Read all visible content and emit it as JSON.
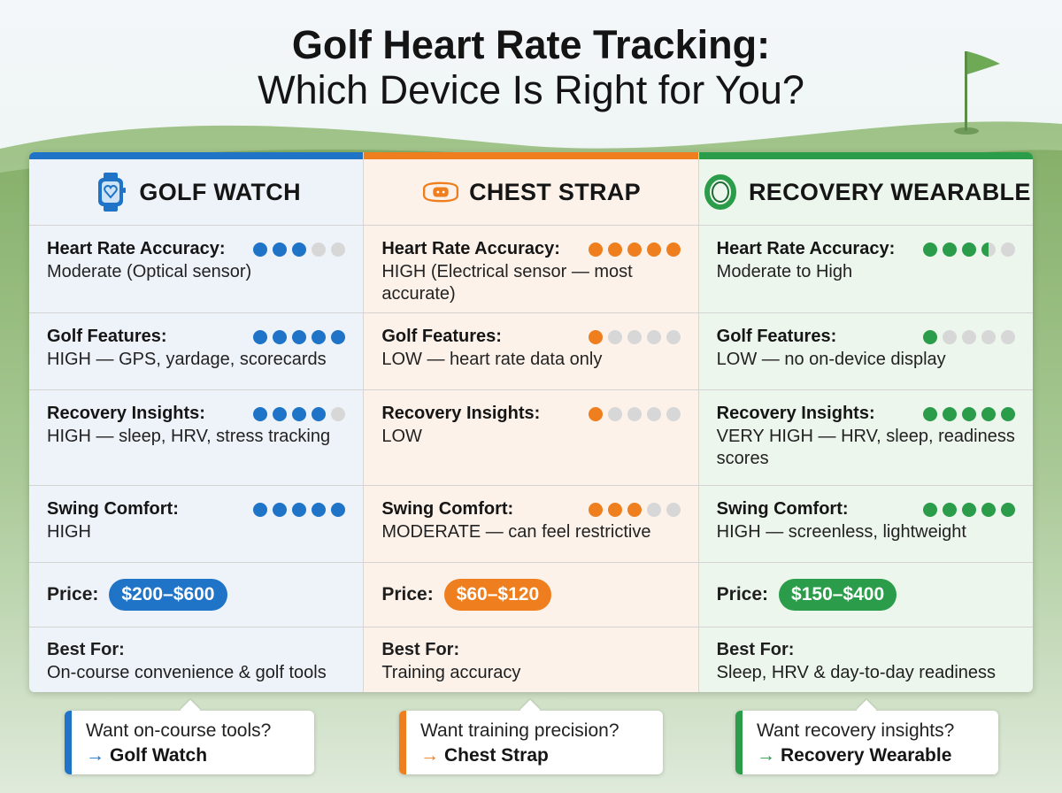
{
  "title": {
    "line1": "Golf Heart Rate Tracking:",
    "line2": "Which Device Is Right for You?"
  },
  "colors": {
    "blue": "#1f74c8",
    "orange": "#ef7e1e",
    "green": "#2a9c4a"
  },
  "columns": [
    {
      "header": "GOLF WATCH",
      "icon": "smartwatch-heart-icon",
      "metrics": [
        {
          "label": "Heart Rate Accuracy:",
          "value": "Moderate (Optical sensor)",
          "rating": 3
        },
        {
          "label": "Golf Features:",
          "value": "HIGH — GPS, yardage, scorecards",
          "rating": 5
        },
        {
          "label": "Recovery Insights:",
          "value": "HIGH — sleep, HRV, stress tracking",
          "rating": 4
        },
        {
          "label": "Swing Comfort:",
          "value": "HIGH",
          "rating": 5
        }
      ],
      "price_label": "Price:",
      "price": "$200–$600",
      "best_for_label": "Best For:",
      "best_for": "On-course convenience & golf tools"
    },
    {
      "header": "CHEST STRAP",
      "icon": "chest-strap-icon",
      "metrics": [
        {
          "label": "Heart Rate Accuracy:",
          "value": "HIGH (Electrical sensor — most accurate)",
          "rating": 5
        },
        {
          "label": "Golf Features:",
          "value": "LOW — heart rate data only",
          "rating": 1
        },
        {
          "label": "Recovery Insights:",
          "value": "LOW",
          "rating": 1
        },
        {
          "label": "Swing Comfort:",
          "value": "MODERATE — can feel restrictive",
          "rating": 3
        }
      ],
      "price_label": "Price:",
      "price": "$60–$120",
      "best_for_label": "Best For:",
      "best_for": "Training accuracy"
    },
    {
      "header": "RECOVERY WEARABLE",
      "icon": "ring-wearable-icon",
      "metrics": [
        {
          "label": "Heart Rate Accuracy:",
          "value": "Moderate to High",
          "rating": 3.5
        },
        {
          "label": "Golf Features:",
          "value": "LOW — no on-device display",
          "rating": 1
        },
        {
          "label": "Recovery Insights:",
          "value": "VERY HIGH — HRV, sleep, readiness scores",
          "rating": 5
        },
        {
          "label": "Swing Comfort:",
          "value": "HIGH — screenless, lightweight",
          "rating": 5
        }
      ],
      "price_label": "Price:",
      "price": "$150–$400",
      "best_for_label": "Best For:",
      "best_for": "Sleep, HRV & day-to-day readiness"
    }
  ],
  "callouts": [
    {
      "question": "Want on-course tools?",
      "answer": "Golf Watch",
      "arrow": "→"
    },
    {
      "question": "Want training precision?",
      "answer": "Chest Strap",
      "arrow": "→"
    },
    {
      "question": "Want recovery insights?",
      "answer": "Recovery Wearable",
      "arrow": "→"
    }
  ]
}
